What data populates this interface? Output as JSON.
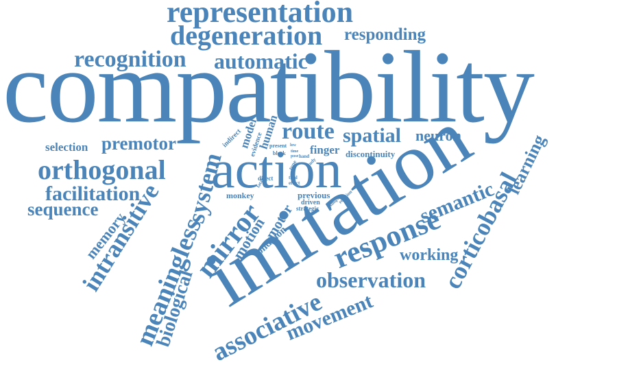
{
  "word_color": "#4a84b8",
  "words": {
    "representation": "representation",
    "degeneration": "degeneration",
    "responding": "responding",
    "recognition": "recognition",
    "automatic": "automatic",
    "compatibility": "compatibility",
    "selection": "selection",
    "premotor": "premotor",
    "route": "route",
    "spatial": "spatial",
    "neuron": "neuron",
    "learning": "learning",
    "orthogonal": "orthogonal",
    "action": "action",
    "imitation": "imitation",
    "facilitation": "facilitation",
    "sequence": "sequence",
    "memory": "memory",
    "intransitive": "intransitive",
    "meaningless": "meaningless",
    "system": "system",
    "mirror": "mirror",
    "motion": "motion",
    "motor": "motor",
    "condition": "condition",
    "biological": "biological",
    "response": "response",
    "semantic": "semantic",
    "corticobasal": "corticobasal",
    "working": "working",
    "associative": "associative",
    "observation": "observation",
    "movement": "movement",
    "finger": "finger",
    "discontinuity": "discontinuity",
    "model": "model",
    "human": "human",
    "evidence": "evidence",
    "indirect": "indirect",
    "present": "present",
    "block": "block",
    "hand": "hand",
    "study": "study",
    "direct": "direct",
    "trial": "trial",
    "effect": "effect",
    "fatal": "fatal",
    "type": "type",
    "monkey": "monkey",
    "previous": "previous",
    "driven": "driven",
    "strategic": "strategic",
    "simple": "simple",
    "reaction": "reaction",
    "low": "low",
    "time": "time",
    "pose": "pose"
  }
}
